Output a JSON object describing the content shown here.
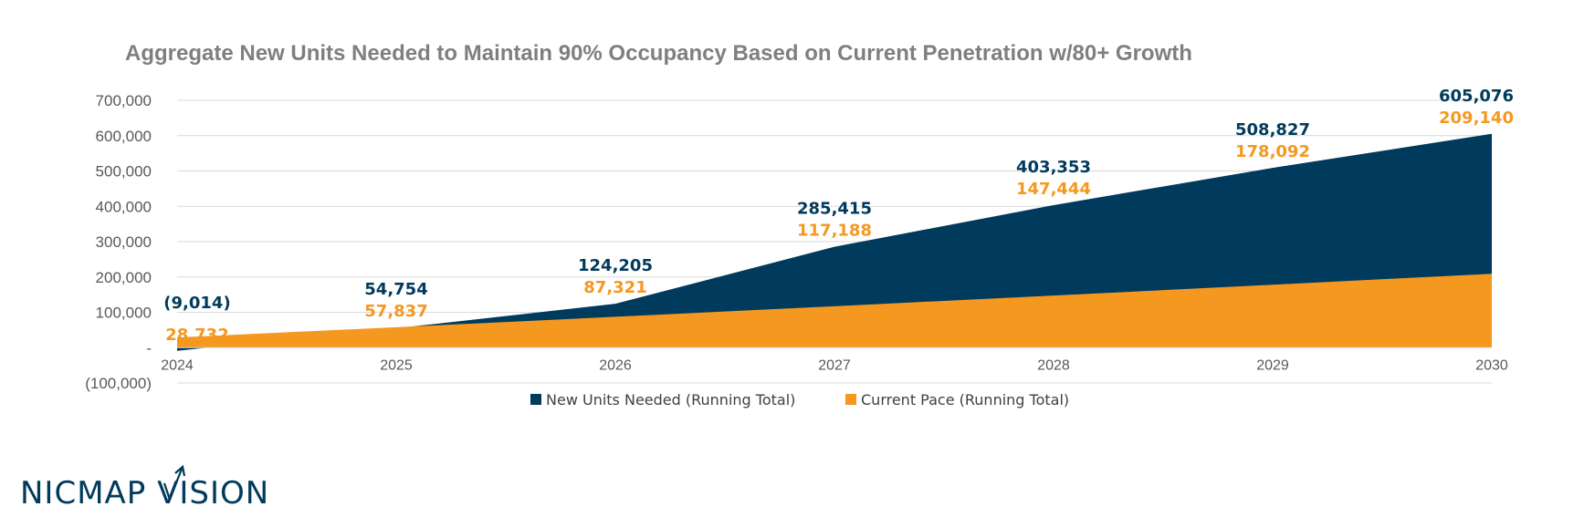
{
  "colors": {
    "needed": "#003a5c",
    "pace": "#f5981f",
    "title": "#7f7f7f",
    "axis_text": "#595959",
    "grid": "#d9d9d9"
  },
  "logo": {
    "text": "NICMAP VISION"
  },
  "chart_data": {
    "type": "area",
    "title": "Aggregate New Units Needed to Maintain 90% Occupancy Based on Current Penetration w/80+ Growth",
    "xlabel": "",
    "ylabel": "",
    "categories": [
      "2024",
      "2025",
      "2026",
      "2027",
      "2028",
      "2029",
      "2030"
    ],
    "ylim": [
      -100000,
      700000
    ],
    "y_ticks": [
      700000,
      600000,
      500000,
      400000,
      300000,
      200000,
      100000,
      0,
      -100000
    ],
    "y_tick_labels": [
      "700,000",
      "600,000",
      "500,000",
      "400,000",
      "300,000",
      "200,000",
      "100,000",
      "-",
      "(100,000)"
    ],
    "grid": true,
    "legend_position": "bottom",
    "series": [
      {
        "name": "New Units Needed (Running Total)",
        "values": [
          -9014,
          54754,
          124205,
          285415,
          403353,
          508827,
          605076
        ],
        "labels": [
          "(9,014)",
          "54,754",
          "124,205",
          "285,415",
          "403,353",
          "508,827",
          "605,076"
        ]
      },
      {
        "name": "Current Pace (Running Total)",
        "values": [
          28732,
          57837,
          87321,
          117188,
          147444,
          178092,
          209140
        ],
        "labels": [
          "28,732",
          "57,837",
          "87,321",
          "117,188",
          "147,444",
          "178,092",
          "209,140"
        ]
      }
    ]
  }
}
